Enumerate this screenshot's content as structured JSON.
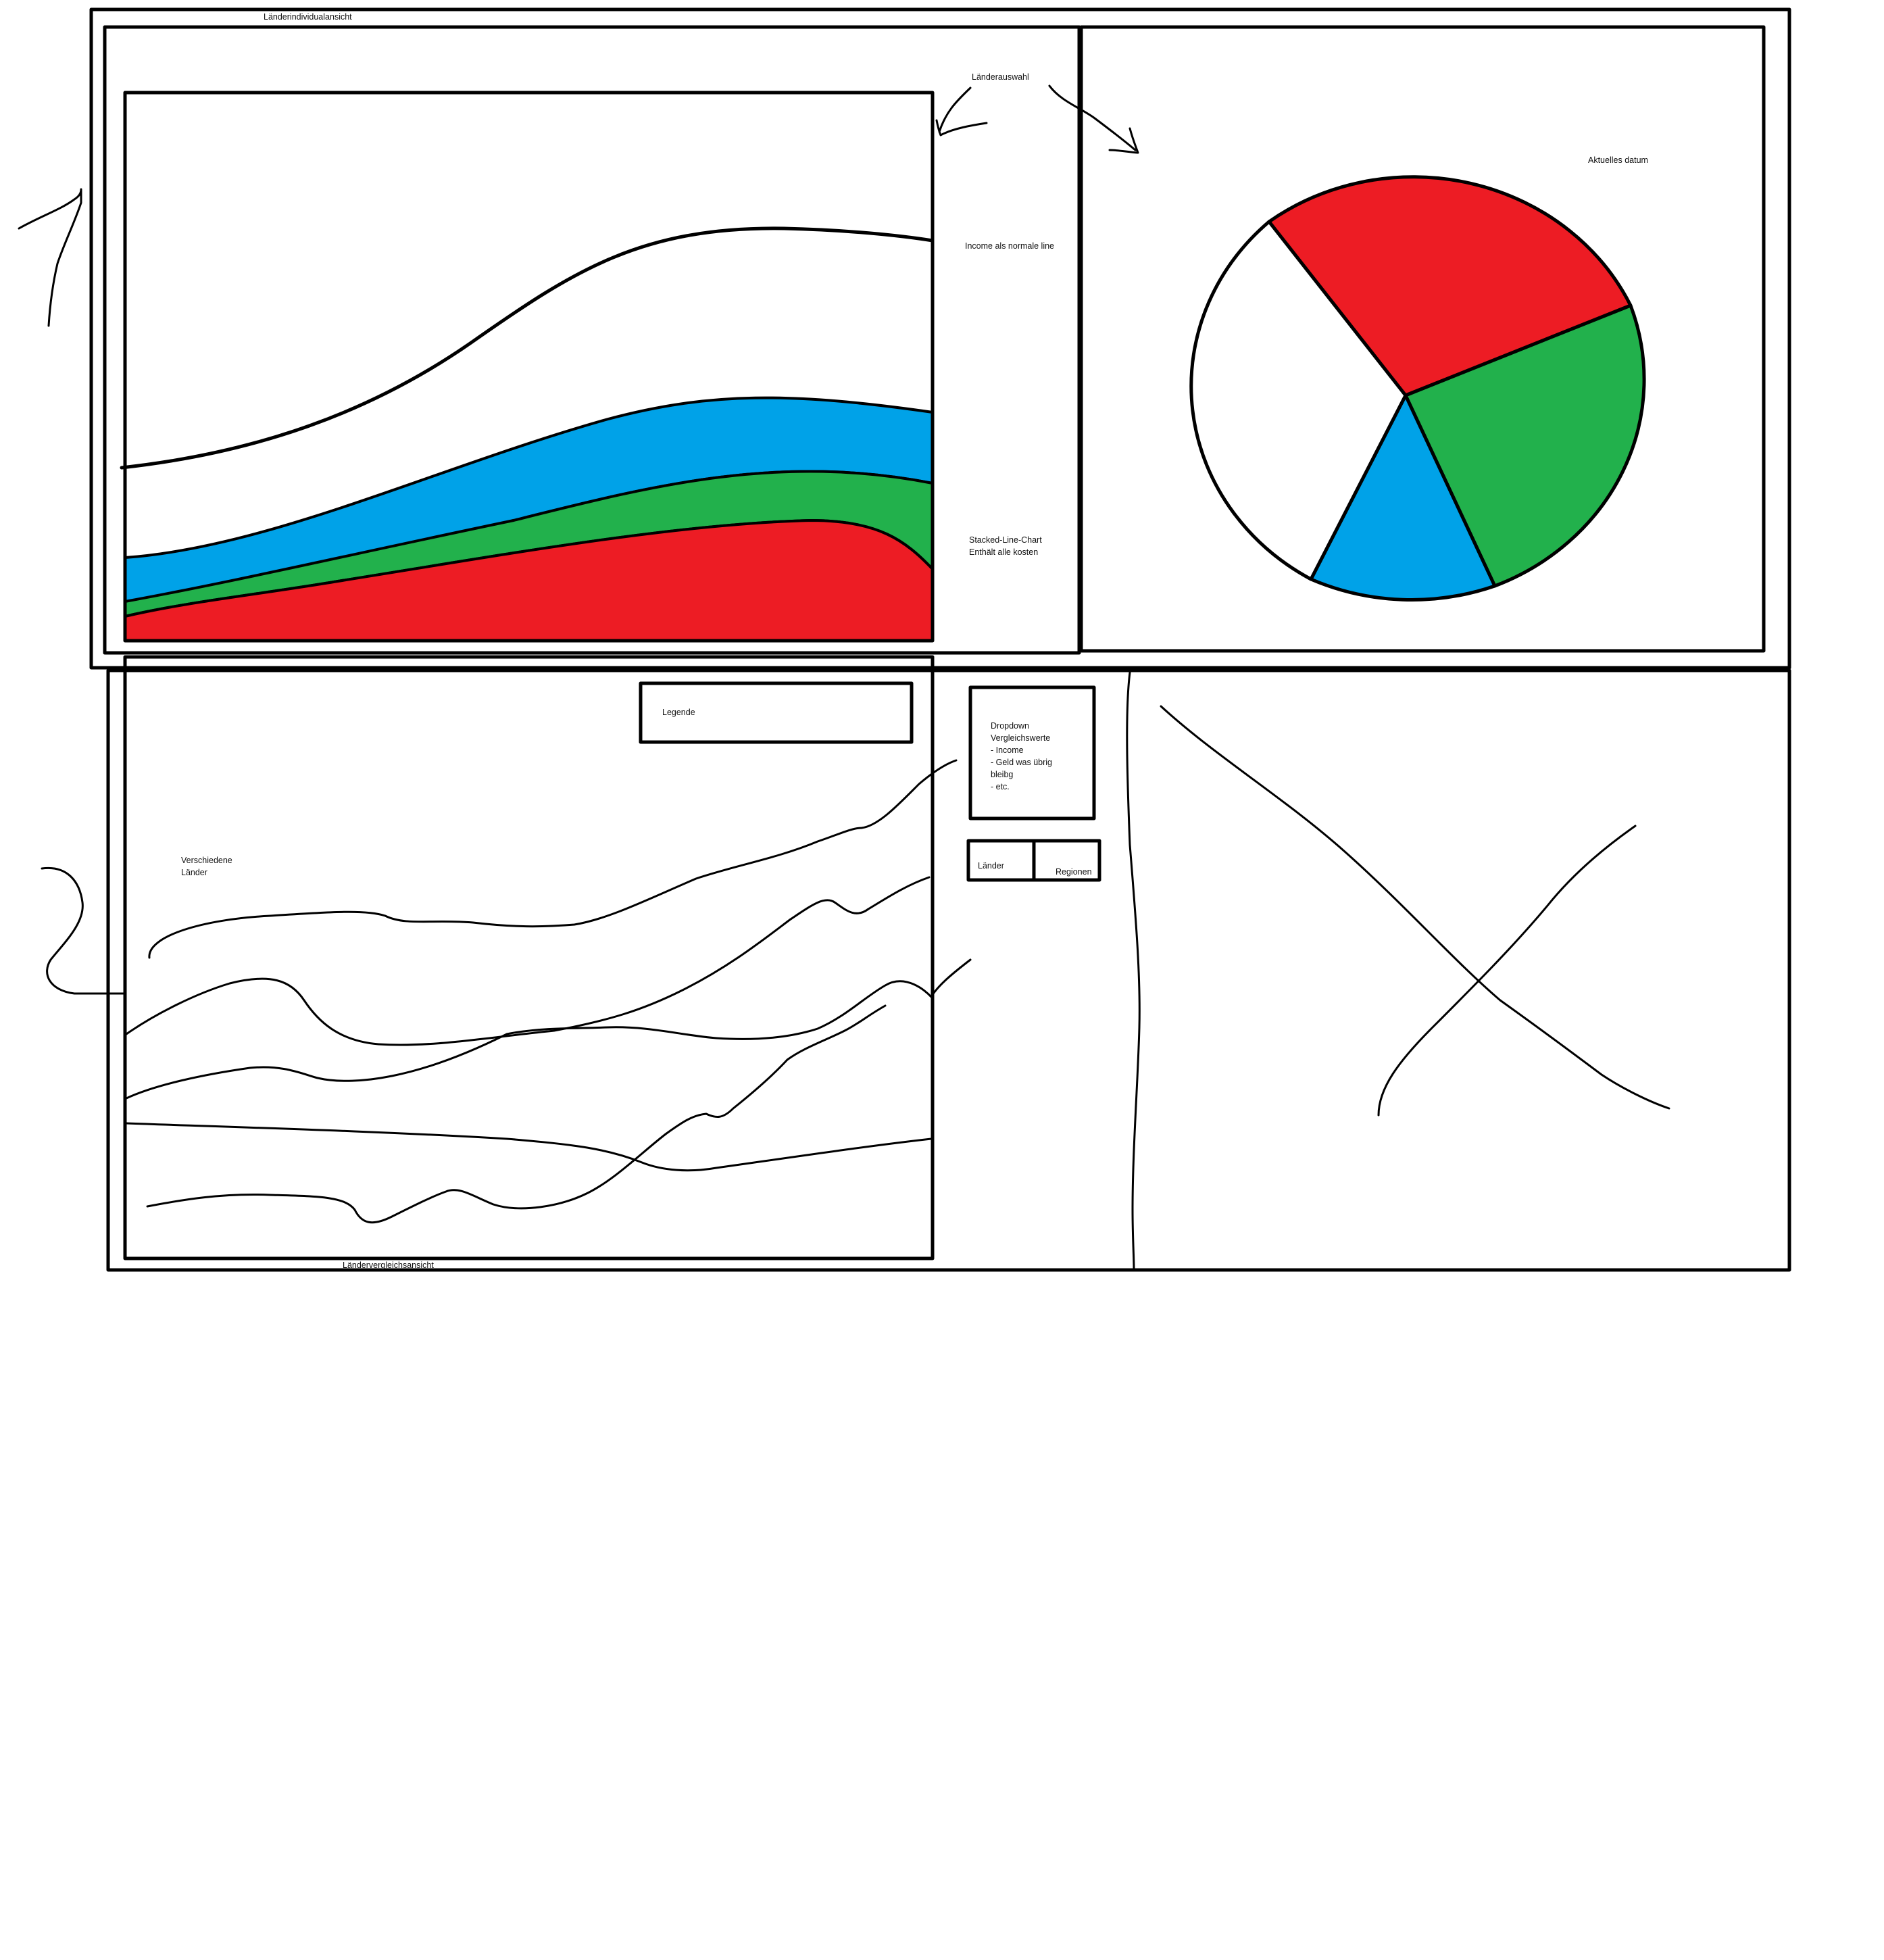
{
  "labels": {
    "individual_view": "Länderindividualansicht",
    "country_selection": "Länderauswahl",
    "income_line": "Income als normale line",
    "stacked_line_1": "Stacked-Line-Chart",
    "stacked_line_2": "Enthält alle kosten",
    "current_date": "Aktuelles datum",
    "legend": "Legende",
    "dropdown": [
      "Dropdown",
      "Vergleichswerte",
      "- Income",
      "- Geld was übrig",
      "bleibg",
      "- etc."
    ],
    "countries_button": "Länder",
    "regions_button": "Regionen",
    "various_countries_1": "Verschiedene",
    "various_countries_2": "Länder",
    "comparison_view": "Ländervergleichsansicht"
  },
  "colors": {
    "ink": "#000000",
    "red": "#ed1c24",
    "green": "#22b14c",
    "blue": "#00a2e8",
    "white": "#ffffff"
  },
  "chart_data": [
    {
      "type": "area",
      "stacked": true,
      "series_colors": [
        "#ed1c24",
        "#22b14c",
        "#00a2e8"
      ],
      "overlay_line": "income",
      "legend": "none"
    },
    {
      "type": "pie",
      "slice_colors": [
        "#ed1c24",
        "#22b14c",
        "#00a2e8",
        "#ffffff"
      ],
      "values": [
        31,
        27,
        15,
        27
      ]
    },
    {
      "type": "line",
      "series_count": 5,
      "legend": "top-right"
    }
  ]
}
